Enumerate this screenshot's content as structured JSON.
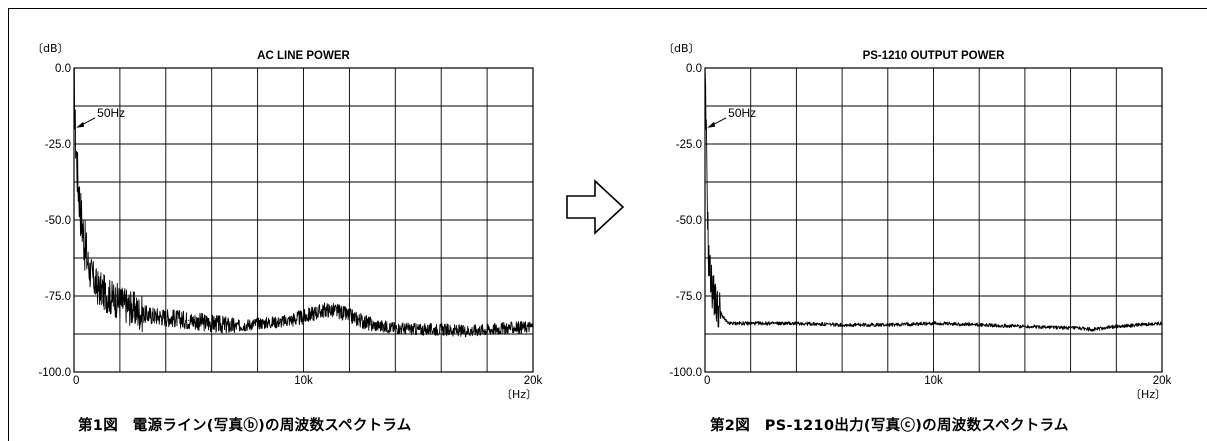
{
  "charts": [
    {
      "chart_data": {
        "type": "line",
        "title": "AC LINE POWER",
        "ylabel": "〔dB〕",
        "xlabel": "〔Hz〕",
        "xlim": [
          0,
          20000
        ],
        "ylim": [
          -100,
          0
        ],
        "yticks": [
          "0.0",
          "-25.0",
          "-50.0",
          "-75.0",
          "-100.0"
        ],
        "xticks": [
          "0",
          "10k",
          "20k"
        ],
        "grid": true,
        "reference_line_db": -87.5,
        "annotation": {
          "text": "50Hz",
          "x": 50,
          "y": -20
        },
        "series": [
          {
            "x": [
              0,
              50,
              150,
              300,
              500,
              700,
              1000,
              1500,
              2000,
              2500,
              3000,
              4000,
              5000,
              6000,
              7000,
              8000,
              9000,
              10000,
              10500,
              11000,
              11500,
              12000,
              12500,
              13000,
              14000,
              15000,
              16000,
              17000,
              18000,
              19000,
              20000
            ],
            "y": [
              -2,
              -20,
              -35,
              -48,
              -60,
              -67,
              -72,
              -75,
              -77,
              -79,
              -81,
              -82,
              -83,
              -84,
              -85,
              -84,
              -83.5,
              -82,
              -80.5,
              -79.5,
              -80,
              -81.5,
              -83,
              -84.5,
              -85.5,
              -86,
              -86,
              -86.5,
              -86,
              -85.5,
              -85
            ]
          }
        ]
      },
      "caption": "第1図　電源ライン(写真ⓑ)の周波数スペクトラム"
    },
    {
      "chart_data": {
        "type": "line",
        "title": "PS-1210 OUTPUT POWER",
        "ylabel": "〔dB〕",
        "xlabel": "〔Hz〕",
        "xlim": [
          0,
          20000
        ],
        "ylim": [
          -100,
          0
        ],
        "yticks": [
          "0.0",
          "-25.0",
          "-50.0",
          "-75.0",
          "-100.0"
        ],
        "xticks": [
          "0",
          "10k",
          "20k"
        ],
        "grid": true,
        "reference_line_db": -87.5,
        "annotation": {
          "text": "50Hz",
          "x": 50,
          "y": -20
        },
        "series": [
          {
            "x": [
              0,
              50,
              150,
              300,
              500,
              800,
              1000,
              2000,
              4000,
              6000,
              8000,
              10000,
              12000,
              14000,
              16000,
              17000,
              18000,
              20000
            ],
            "y": [
              -2,
              -20,
              -62,
              -72,
              -78,
              -82,
              -84,
              -84,
              -84,
              -84.5,
              -84.5,
              -84,
              -84.5,
              -85,
              -85.5,
              -86,
              -85,
              -84
            ]
          }
        ]
      },
      "caption": "第2図　PS-1210出力(写真ⓒ)の周波数スペクトラム"
    }
  ],
  "transition_arrow": "hollow-right-arrow"
}
